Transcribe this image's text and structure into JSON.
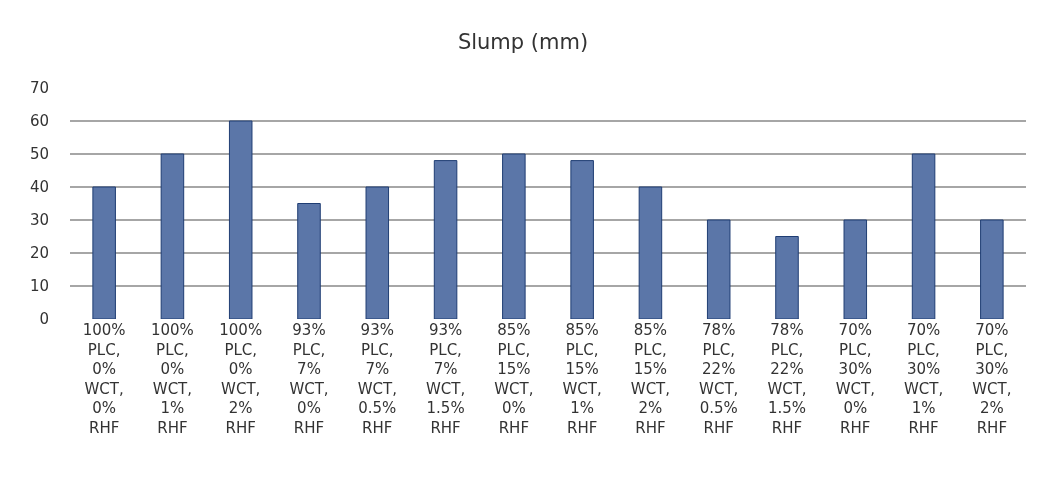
{
  "chart_data": {
    "type": "bar",
    "title": "Slump (mm)",
    "categories": [
      "100% PLC, 0% WCT, 0% RHF",
      "100% PLC, 0% WCT, 1% RHF",
      "100% PLC, 0% WCT, 2% RHF",
      "93% PLC, 7% WCT, 0% RHF",
      "93% PLC, 7% WCT, 0.5% RHF",
      "93% PLC, 7% WCT, 1.5% RHF",
      "85% PLC, 15% WCT, 0% RHF",
      "85% PLC, 15% WCT, 1% RHF",
      "85% PLC, 15% WCT, 2% RHF",
      "78% PLC, 22% WCT, 0.5% RHF",
      "78% PLC, 22% WCT, 1.5% RHF",
      "70% PLC, 30% WCT, 0% RHF",
      "70% PLC, 30% WCT, 1% RHF",
      "70% PLC, 30% WCT, 2% RHF"
    ],
    "values": [
      40,
      50,
      60,
      35,
      40,
      48,
      50,
      48,
      40,
      30,
      25,
      30,
      50,
      30
    ],
    "color": "#5b76a8",
    "ylim": [
      0,
      70
    ],
    "yticks": [
      0,
      10,
      20,
      30,
      40,
      50,
      60,
      70
    ],
    "grid": "y",
    "legend": false
  }
}
